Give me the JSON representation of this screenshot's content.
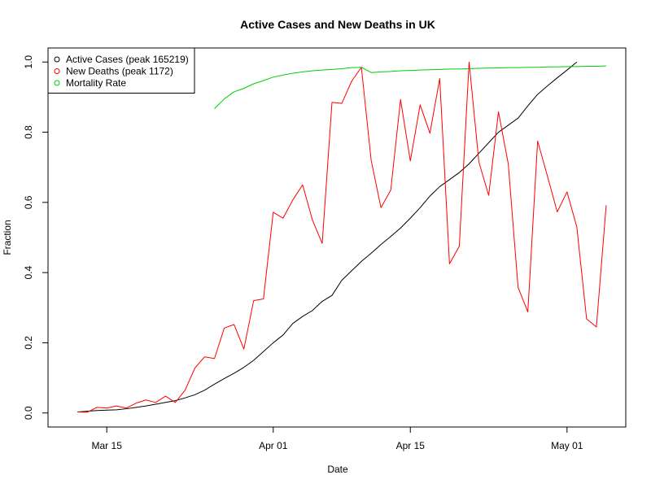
{
  "chart_data": {
    "type": "line",
    "title": "Active Cases and New Deaths in UK",
    "xlabel": "Date",
    "ylabel": "Fraction",
    "x_start": "2020-03-12",
    "x_tick_dates": [
      "2020-03-15",
      "2020-04-01",
      "2020-04-15",
      "2020-05-01"
    ],
    "x_tick_labels": [
      "Mar 15",
      "Apr 01",
      "Apr 15",
      "May 01"
    ],
    "xlim": [
      "2020-03-09",
      "2020-05-07"
    ],
    "y_ticks": [
      0.0,
      0.2,
      0.4,
      0.6,
      0.8,
      1.0
    ],
    "y_tick_labels": [
      "0.0",
      "0.2",
      "0.4",
      "0.6",
      "0.8",
      "1.0"
    ],
    "ylim": [
      -0.04,
      1.04
    ],
    "grid": false,
    "legend_position": "top-left",
    "series": [
      {
        "name": "Active Cases (peak 165219)",
        "color": "#000000",
        "start_date": "2020-03-12",
        "values": [
          0.003,
          0.005,
          0.007,
          0.008,
          0.009,
          0.012,
          0.016,
          0.02,
          0.025,
          0.03,
          0.035,
          0.043,
          0.052,
          0.065,
          0.082,
          0.098,
          0.113,
          0.13,
          0.15,
          0.175,
          0.2,
          0.222,
          0.255,
          0.275,
          0.292,
          0.318,
          0.335,
          0.378,
          0.405,
          0.432,
          0.455,
          0.48,
          0.503,
          0.527,
          0.555,
          0.585,
          0.618,
          0.645,
          0.665,
          0.685,
          0.71,
          0.74,
          0.77,
          0.8,
          0.82,
          0.84,
          0.875,
          0.908,
          0.932,
          0.955,
          0.977,
          1.0
        ]
      },
      {
        "name": "New Deaths (peak 1172)",
        "color": "#ff0000",
        "start_date": "2020-03-12",
        "values": [
          0.003,
          0.002,
          0.016,
          0.014,
          0.02,
          0.014,
          0.028,
          0.037,
          0.03,
          0.048,
          0.03,
          0.065,
          0.128,
          0.16,
          0.155,
          0.242,
          0.252,
          0.182,
          0.32,
          0.325,
          0.572,
          0.555,
          0.607,
          0.65,
          0.55,
          0.483,
          0.885,
          0.882,
          0.945,
          0.985,
          0.72,
          0.585,
          0.635,
          0.893,
          0.718,
          0.878,
          0.797,
          0.953,
          0.425,
          0.475,
          1.0,
          0.715,
          0.62,
          0.858,
          0.71,
          0.358,
          0.288,
          0.775,
          0.675,
          0.573,
          0.63,
          0.53,
          0.268,
          0.245,
          0.592
        ]
      },
      {
        "name": "Mortality Rate",
        "color": "#00cd00",
        "start_date": "2020-03-26",
        "values": [
          0.867,
          0.895,
          0.915,
          0.925,
          0.938,
          0.947,
          0.957,
          0.963,
          0.968,
          0.972,
          0.975,
          0.977,
          0.979,
          0.981,
          0.984,
          0.985,
          0.97,
          0.972,
          0.973,
          0.975,
          0.976,
          0.977,
          0.978,
          0.979,
          0.98,
          0.98,
          0.981,
          0.982,
          0.983,
          0.983,
          0.984,
          0.984,
          0.985,
          0.985,
          0.986,
          0.986,
          0.987,
          0.987,
          0.988,
          0.988,
          0.989
        ]
      }
    ]
  }
}
